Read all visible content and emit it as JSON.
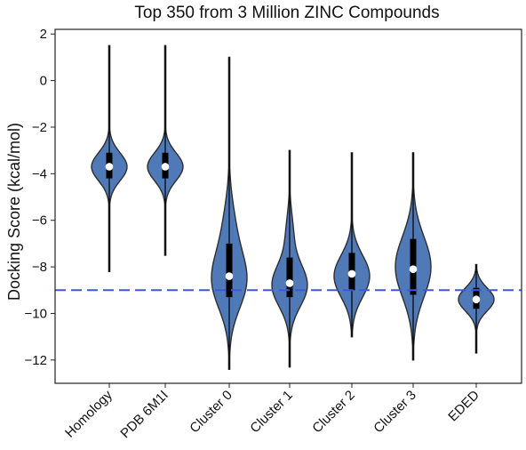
{
  "chart_data": {
    "type": "violin",
    "title": "Top 350 from 3 Million ZINC Compounds",
    "xlabel": "",
    "ylabel": "Docking Score (kcal/mol)",
    "ylim": [
      -13,
      2.2
    ],
    "yticks": [
      2,
      0,
      -2,
      -4,
      -6,
      -8,
      -10,
      -12
    ],
    "categories": [
      "Homology",
      "PDB 6M1I",
      "Cluster 0",
      "Cluster 1",
      "Cluster 2",
      "Cluster 3",
      "EDED"
    ],
    "violins": [
      {
        "category": "Homology",
        "min": -8.2,
        "max": 1.5,
        "q1": -4.2,
        "median": -3.7,
        "q3": -3.1
      },
      {
        "category": "PDB 6M1I",
        "min": -7.5,
        "max": 1.5,
        "q1": -4.2,
        "median": -3.7,
        "q3": -3.1
      },
      {
        "category": "Cluster 0",
        "min": -12.4,
        "max": 1.0,
        "q1": -9.3,
        "median": -8.4,
        "q3": -7.0
      },
      {
        "category": "Cluster 1",
        "min": -12.3,
        "max": -3.0,
        "q1": -9.3,
        "median": -8.7,
        "q3": -7.6
      },
      {
        "category": "Cluster 2",
        "min": -11.0,
        "max": -3.1,
        "q1": -9.0,
        "median": -8.3,
        "q3": -7.4
      },
      {
        "category": "Cluster 3",
        "min": -12.0,
        "max": -3.1,
        "q1": -9.2,
        "median": -8.1,
        "q3": -6.8
      },
      {
        "category": "EDED",
        "min": -11.7,
        "max": -7.9,
        "q1": -9.8,
        "median": -9.4,
        "q3": -8.9
      }
    ],
    "reference_line": {
      "y": -9.0,
      "style": "dashed",
      "color": "#3f5ad6"
    },
    "colors": {
      "violin_fill": "#4f79b7",
      "violin_edge": "#2e2e2e",
      "box": "#000000",
      "median": "#ffffff"
    },
    "grid": false,
    "legend": "none"
  }
}
